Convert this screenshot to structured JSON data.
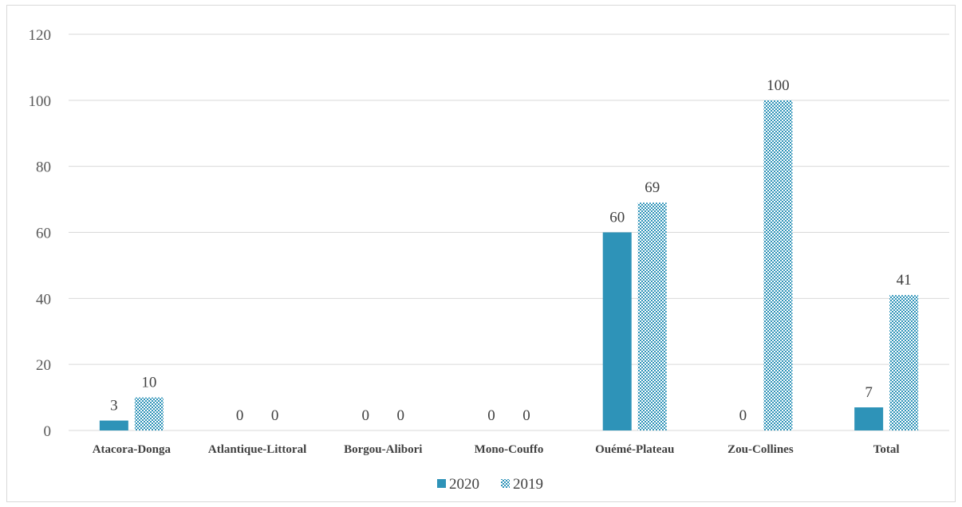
{
  "chart_data": {
    "type": "bar",
    "categories": [
      "Atacora-Donga",
      "Atlantique-Littoral",
      "Borgou-Alibori",
      "Mono-Couffo",
      "Ouémé-Plateau",
      "Zou-Collines",
      "Total"
    ],
    "series": [
      {
        "name": "2020",
        "values": [
          3,
          0,
          0,
          0,
          60,
          0,
          7
        ],
        "labels": [
          "3",
          "0",
          "0",
          "0",
          "60",
          "0",
          "7"
        ],
        "color": "#2e93b8",
        "pattern": "solid"
      },
      {
        "name": "2019",
        "values": [
          10,
          0,
          0,
          0,
          69,
          100,
          41
        ],
        "labels": [
          "10",
          "0",
          "0",
          "0",
          "69",
          "100",
          "41"
        ],
        "color": "#2e93b8",
        "pattern": "checker"
      }
    ],
    "yticks": [
      "0",
      "20",
      "40",
      "60",
      "80",
      "100",
      "120"
    ],
    "ylim": [
      0,
      120
    ],
    "grid": true,
    "legend": "bottom-center"
  }
}
